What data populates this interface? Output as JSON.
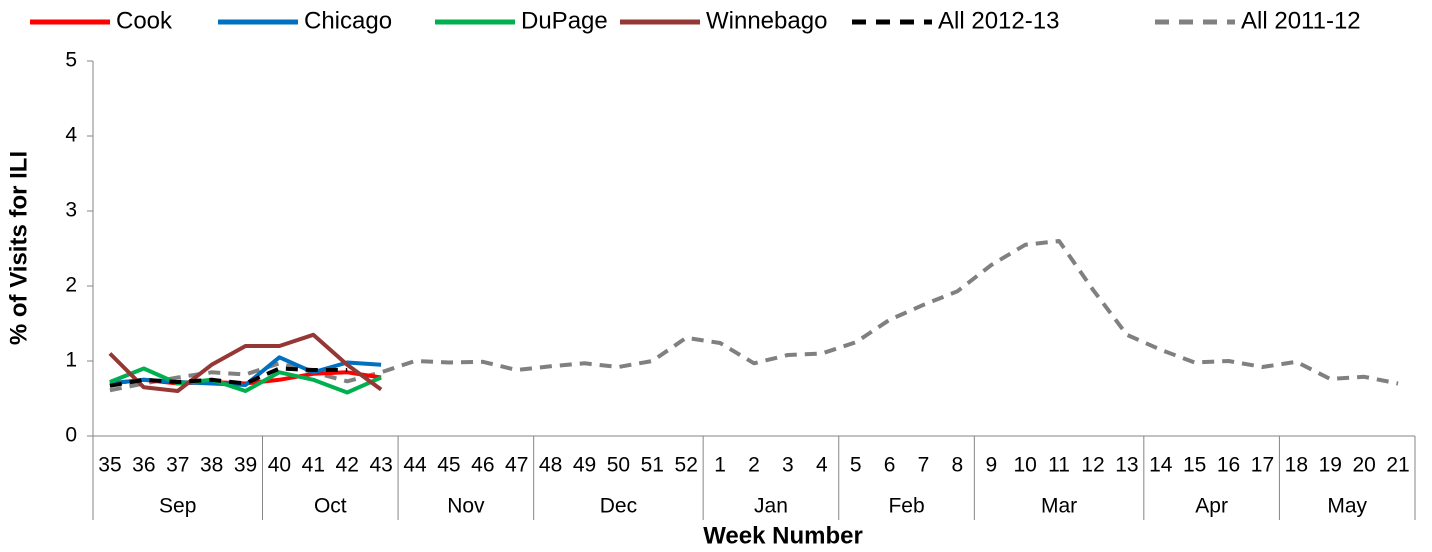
{
  "chart_data": {
    "type": "line",
    "y_label": "% of Visits for ILI",
    "x_label": "Week Number",
    "categories": [
      "35",
      "36",
      "37",
      "38",
      "39",
      "40",
      "41",
      "42",
      "43",
      "44",
      "45",
      "46",
      "47",
      "48",
      "49",
      "50",
      "51",
      "52",
      "1",
      "2",
      "3",
      "4",
      "5",
      "6",
      "7",
      "8",
      "9",
      "10",
      "11",
      "12",
      "13",
      "14",
      "15",
      "16",
      "17",
      "18",
      "19",
      "20",
      "21"
    ],
    "x_groups": [
      {
        "label": "Sep",
        "count": 5
      },
      {
        "label": "Oct",
        "count": 4
      },
      {
        "label": "Nov",
        "count": 4
      },
      {
        "label": "Dec",
        "count": 5
      },
      {
        "label": "Jan",
        "count": 4
      },
      {
        "label": "Feb",
        "count": 4
      },
      {
        "label": "Mar",
        "count": 5
      },
      {
        "label": "Apr",
        "count": 4
      },
      {
        "label": "May",
        "count": 4
      }
    ],
    "ylim": [
      0,
      5
    ],
    "yticks": [
      0,
      1,
      2,
      3,
      4,
      5
    ],
    "grid": false,
    "series": [
      {
        "name": "Cook",
        "color": "#ff0000",
        "dash": false,
        "values": [
          0.7,
          0.75,
          0.7,
          0.72,
          0.7,
          0.75,
          0.83,
          0.85,
          0.78,
          null,
          null,
          null,
          null,
          null,
          null,
          null,
          null,
          null,
          null,
          null,
          null,
          null,
          null,
          null,
          null,
          null,
          null,
          null,
          null,
          null,
          null,
          null,
          null,
          null,
          null,
          null,
          null,
          null,
          null
        ]
      },
      {
        "name": "Chicago",
        "color": "#0070c0",
        "dash": false,
        "values": [
          0.7,
          0.75,
          0.72,
          0.7,
          0.68,
          1.05,
          0.85,
          0.98,
          0.95,
          null,
          null,
          null,
          null,
          null,
          null,
          null,
          null,
          null,
          null,
          null,
          null,
          null,
          null,
          null,
          null,
          null,
          null,
          null,
          null,
          null,
          null,
          null,
          null,
          null,
          null,
          null,
          null,
          null,
          null
        ]
      },
      {
        "name": "DuPage",
        "color": "#00b050",
        "dash": false,
        "values": [
          0.72,
          0.9,
          0.7,
          0.75,
          0.6,
          0.85,
          0.75,
          0.58,
          0.78,
          null,
          null,
          null,
          null,
          null,
          null,
          null,
          null,
          null,
          null,
          null,
          null,
          null,
          null,
          null,
          null,
          null,
          null,
          null,
          null,
          null,
          null,
          null,
          null,
          null,
          null,
          null,
          null,
          null,
          null
        ]
      },
      {
        "name": "Winnebago",
        "color": "#953735",
        "dash": false,
        "values": [
          1.1,
          0.65,
          0.6,
          0.95,
          1.2,
          1.2,
          1.35,
          0.95,
          0.62,
          null,
          null,
          null,
          null,
          null,
          null,
          null,
          null,
          null,
          null,
          null,
          null,
          null,
          null,
          null,
          null,
          null,
          null,
          null,
          null,
          null,
          null,
          null,
          null,
          null,
          null,
          null,
          null,
          null,
          null
        ]
      },
      {
        "name": "All 2012-13",
        "color": "#000000",
        "dash": true,
        "values": [
          0.67,
          0.75,
          0.72,
          0.75,
          0.7,
          0.9,
          0.88,
          0.88,
          null,
          null,
          null,
          null,
          null,
          null,
          null,
          null,
          null,
          null,
          null,
          null,
          null,
          null,
          null,
          null,
          null,
          null,
          null,
          null,
          null,
          null,
          null,
          null,
          null,
          null,
          null,
          null,
          null,
          null,
          null
        ]
      },
      {
        "name": "All 2011-12",
        "color": "#808080",
        "dash": true,
        "values": [
          0.61,
          0.7,
          0.78,
          0.85,
          0.82,
          0.97,
          0.85,
          0.73,
          0.85,
          1.0,
          0.98,
          0.99,
          0.88,
          0.93,
          0.97,
          0.92,
          1.0,
          1.31,
          1.24,
          0.97,
          1.08,
          1.1,
          1.25,
          1.55,
          1.75,
          1.93,
          2.28,
          2.55,
          2.6,
          1.95,
          1.35,
          1.15,
          0.98,
          1.0,
          0.92,
          0.99,
          0.76,
          0.79,
          0.7
        ]
      }
    ]
  }
}
